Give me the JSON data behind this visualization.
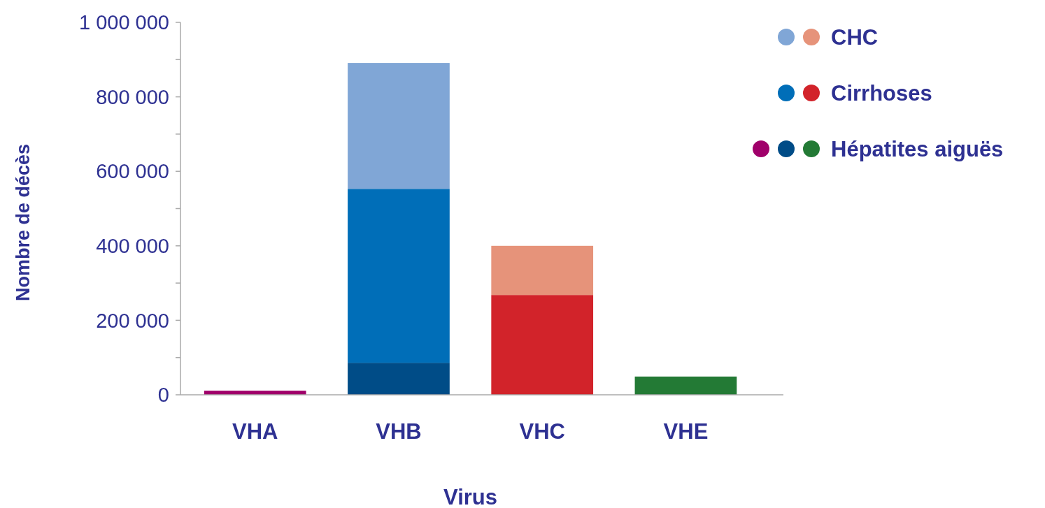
{
  "chart_data": {
    "type": "bar",
    "stacked": true,
    "xlabel": "Virus",
    "ylabel": "Nombre de décès",
    "categories": [
      "VHA",
      "VHB",
      "VHC",
      "VHE"
    ],
    "series": [
      {
        "name": "Hépatites aiguës",
        "colors": [
          "#a0006a",
          "#004c87",
          null,
          "#237a35"
        ],
        "values": [
          11000,
          86000,
          null,
          49000
        ]
      },
      {
        "name": "Cirrhoses",
        "colors": [
          null,
          "#006eb8",
          "#d2232a",
          null
        ],
        "values": [
          null,
          467000,
          268000,
          null
        ]
      },
      {
        "name": "CHC",
        "colors": [
          null,
          "#80a6d6",
          "#e6937a",
          null
        ],
        "values": [
          null,
          338000,
          132000,
          null
        ]
      }
    ],
    "ylim": [
      0,
      1000000
    ],
    "yticks": [
      0,
      {
        "value": 100000,
        "label": null
      },
      {
        "value": 200000,
        "label": "200 000"
      },
      {
        "value": 300000,
        "label": null
      },
      {
        "value": 400000,
        "label": "400 000"
      },
      {
        "value": 500000,
        "label": null
      },
      {
        "value": 600000,
        "label": "600 000"
      },
      {
        "value": 700000,
        "label": null
      },
      {
        "value": 800000,
        "label": "800 000"
      },
      {
        "value": 900000,
        "label": null
      },
      {
        "value": 1000000,
        "label": "1 000 000"
      }
    ],
    "grid": false,
    "legend": "top right"
  }
}
